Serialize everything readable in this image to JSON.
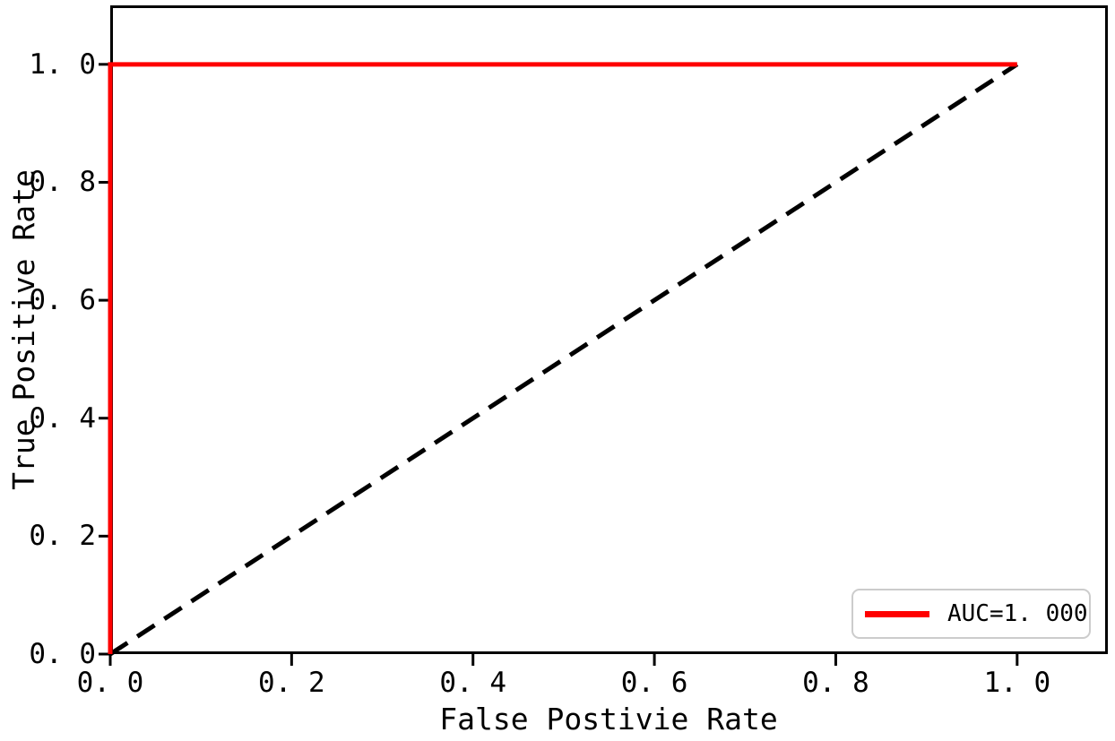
{
  "figure": {
    "background": "#ffffff",
    "axes_color": "#000000"
  },
  "chart_data": {
    "type": "line",
    "title": "",
    "xlabel": "False Postivie Rate",
    "ylabel": "True Positive Rate",
    "xlim": [
      0.0,
      1.1
    ],
    "ylim": [
      0.0,
      1.1
    ],
    "grid": false,
    "x_ticks": [
      0.0,
      0.2,
      0.4,
      0.6,
      0.8,
      1.0
    ],
    "x_tick_labels": [
      "0. 0",
      "0. 2",
      "0. 4",
      "0. 6",
      "0. 8",
      "1. 0"
    ],
    "y_ticks": [
      0.0,
      0.2,
      0.4,
      0.6,
      0.8,
      1.0
    ],
    "y_tick_labels": [
      "0. 0",
      "0. 2",
      "0. 4",
      "0. 6",
      "0. 8",
      "1. 0"
    ],
    "series": [
      {
        "name": "chance-diagonal",
        "color": "#000000",
        "line_style": "dashed",
        "line_width": 5,
        "x": [
          0.0,
          1.0
        ],
        "y": [
          0.0,
          1.0
        ]
      },
      {
        "name": "roc-curve",
        "color": "#ff0000",
        "line_style": "solid",
        "line_width": 5,
        "x": [
          0.0,
          0.0,
          1.0
        ],
        "y": [
          0.0,
          1.0,
          1.0
        ]
      }
    ],
    "legend": {
      "position": "lower right",
      "entries": [
        {
          "label": "AUC=1. 000",
          "color": "#ff0000"
        }
      ]
    }
  }
}
